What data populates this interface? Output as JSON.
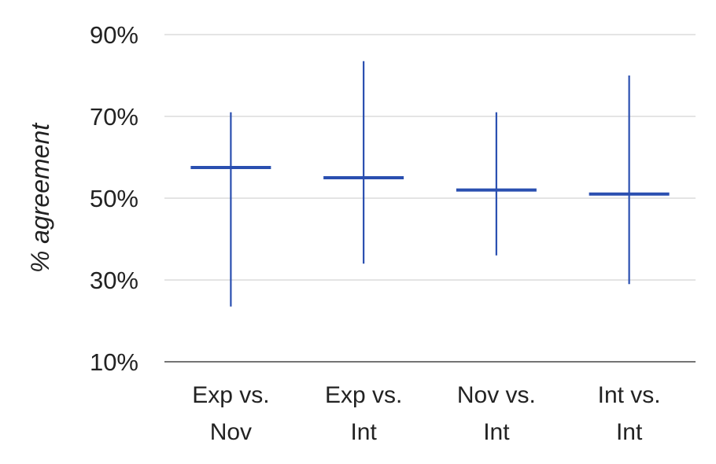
{
  "chart_data": {
    "type": "scatter",
    "ylabel": "% agreement",
    "xlabel": "",
    "title": "",
    "ylim": [
      10,
      90
    ],
    "yticks": [
      "10%",
      "30%",
      "50%",
      "70%",
      "90%"
    ],
    "ytick_values": [
      10,
      30,
      50,
      70,
      90
    ],
    "categories": [
      {
        "line1": "Exp vs.",
        "line2": "Nov"
      },
      {
        "line1": "Exp vs.",
        "line2": "Int"
      },
      {
        "line1": "Nov vs.",
        "line2": "Int"
      },
      {
        "line1": "Int vs.",
        "line2": "Int"
      }
    ],
    "series": [
      {
        "mean": [
          57.5,
          55,
          52,
          51
        ],
        "low": [
          23.5,
          34,
          36,
          29
        ],
        "high": [
          71,
          83.5,
          71,
          80
        ]
      }
    ],
    "grid": true,
    "color": "#2a4fb0"
  }
}
